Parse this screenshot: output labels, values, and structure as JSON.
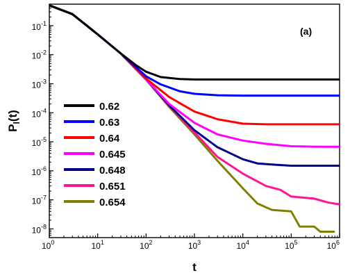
{
  "chart_data": {
    "type": "line",
    "panel_label": "(a)",
    "xlabel": "t",
    "ylabel": {
      "main": "P",
      "sub": "l",
      "suffix": "(t)"
    },
    "x_scale": "log",
    "y_scale": "log",
    "xlim": [
      1,
      1000000
    ],
    "ylim": [
      5e-09,
      0.55
    ],
    "x_ticks": [
      {
        "base": "10",
        "exp": "0",
        "value": 1
      },
      {
        "base": "10",
        "exp": "1",
        "value": 10
      },
      {
        "base": "10",
        "exp": "2",
        "value": 100
      },
      {
        "base": "10",
        "exp": "3",
        "value": 1000
      },
      {
        "base": "10",
        "exp": "4",
        "value": 10000
      },
      {
        "base": "10",
        "exp": "5",
        "value": 100000
      },
      {
        "base": "10",
        "exp": "6",
        "value": 1000000
      }
    ],
    "y_ticks": [
      {
        "base": "10",
        "exp": "-1",
        "value": 0.1
      },
      {
        "base": "10",
        "exp": "-2",
        "value": 0.01
      },
      {
        "base": "10",
        "exp": "-3",
        "value": 0.001
      },
      {
        "base": "10",
        "exp": "-4",
        "value": 0.0001
      },
      {
        "base": "10",
        "exp": "-5",
        "value": 1e-05
      },
      {
        "base": "10",
        "exp": "-6",
        "value": 1e-06
      },
      {
        "base": "10",
        "exp": "-7",
        "value": 1e-07
      },
      {
        "base": "10",
        "exp": "-8",
        "value": 1e-08
      }
    ],
    "grid": false,
    "legend_position": "left-center",
    "series": [
      {
        "name": "0.62",
        "color": "#000000",
        "x": [
          1,
          3,
          10,
          30,
          60,
          100,
          200,
          500,
          1000,
          10000,
          100000,
          1000000
        ],
        "y": [
          0.5,
          0.25,
          0.05,
          0.011,
          0.0045,
          0.0026,
          0.0017,
          0.00145,
          0.0014,
          0.0014,
          0.0014,
          0.0014
        ]
      },
      {
        "name": "0.63",
        "color": "#0000ff",
        "x": [
          1,
          3,
          10,
          30,
          100,
          200,
          500,
          1000,
          3000,
          10000,
          100000,
          1000000
        ],
        "y": [
          0.5,
          0.25,
          0.05,
          0.011,
          0.0018,
          0.00095,
          0.00055,
          0.00045,
          0.0004,
          0.00039,
          0.00039,
          0.00039
        ]
      },
      {
        "name": "0.64",
        "color": "#ff0000",
        "x": [
          1,
          3,
          10,
          30,
          100,
          300,
          1000,
          3000,
          10000,
          30000,
          100000,
          1000000
        ],
        "y": [
          0.5,
          0.25,
          0.05,
          0.011,
          0.0015,
          0.00035,
          0.00011,
          6e-05,
          4.2e-05,
          4e-05,
          4e-05,
          4e-05
        ]
      },
      {
        "name": "0.645",
        "color": "#ff00ff",
        "x": [
          1,
          3,
          10,
          30,
          100,
          300,
          1000,
          3000,
          10000,
          30000,
          100000,
          300000,
          1000000
        ],
        "y": [
          0.5,
          0.25,
          0.05,
          0.011,
          0.0014,
          0.0002,
          4.5e-05,
          1.8e-05,
          1.1e-05,
          8.5e-06,
          7e-06,
          6.8e-06,
          6.7e-06
        ]
      },
      {
        "name": "0.648",
        "color": "#00008b",
        "x": [
          1,
          3,
          10,
          30,
          100,
          300,
          1000,
          3000,
          10000,
          20000,
          50000,
          100000,
          1000000
        ],
        "y": [
          0.5,
          0.25,
          0.05,
          0.011,
          0.0014,
          0.00018,
          2.5e-05,
          6.5e-06,
          2.5e-06,
          1.8e-06,
          1.6e-06,
          1.5e-06,
          1.5e-06
        ]
      },
      {
        "name": "0.651",
        "color": "#ff1493",
        "x": [
          1,
          3,
          10,
          30,
          100,
          300,
          1000,
          3000,
          10000,
          30000,
          60000,
          100000,
          300000,
          600000,
          1000000
        ],
        "y": [
          0.5,
          0.25,
          0.05,
          0.011,
          0.0014,
          0.00017,
          2.1e-05,
          3e-06,
          8e-07,
          3e-07,
          2.2e-07,
          1.3e-07,
          1.1e-07,
          8e-08,
          7e-08
        ]
      },
      {
        "name": "0.654",
        "color": "#808000",
        "x": [
          1,
          3,
          10,
          30,
          100,
          300,
          1000,
          3000,
          10000,
          20000,
          40000,
          100000,
          150000,
          300000,
          400000,
          800000
        ],
        "y": [
          0.5,
          0.25,
          0.05,
          0.011,
          0.0014,
          0.00016,
          1.8e-05,
          2.2e-06,
          2.5e-07,
          7.5e-08,
          4.5e-08,
          4e-08,
          1.2e-08,
          1.2e-08,
          8e-09,
          8e-09
        ]
      }
    ]
  }
}
